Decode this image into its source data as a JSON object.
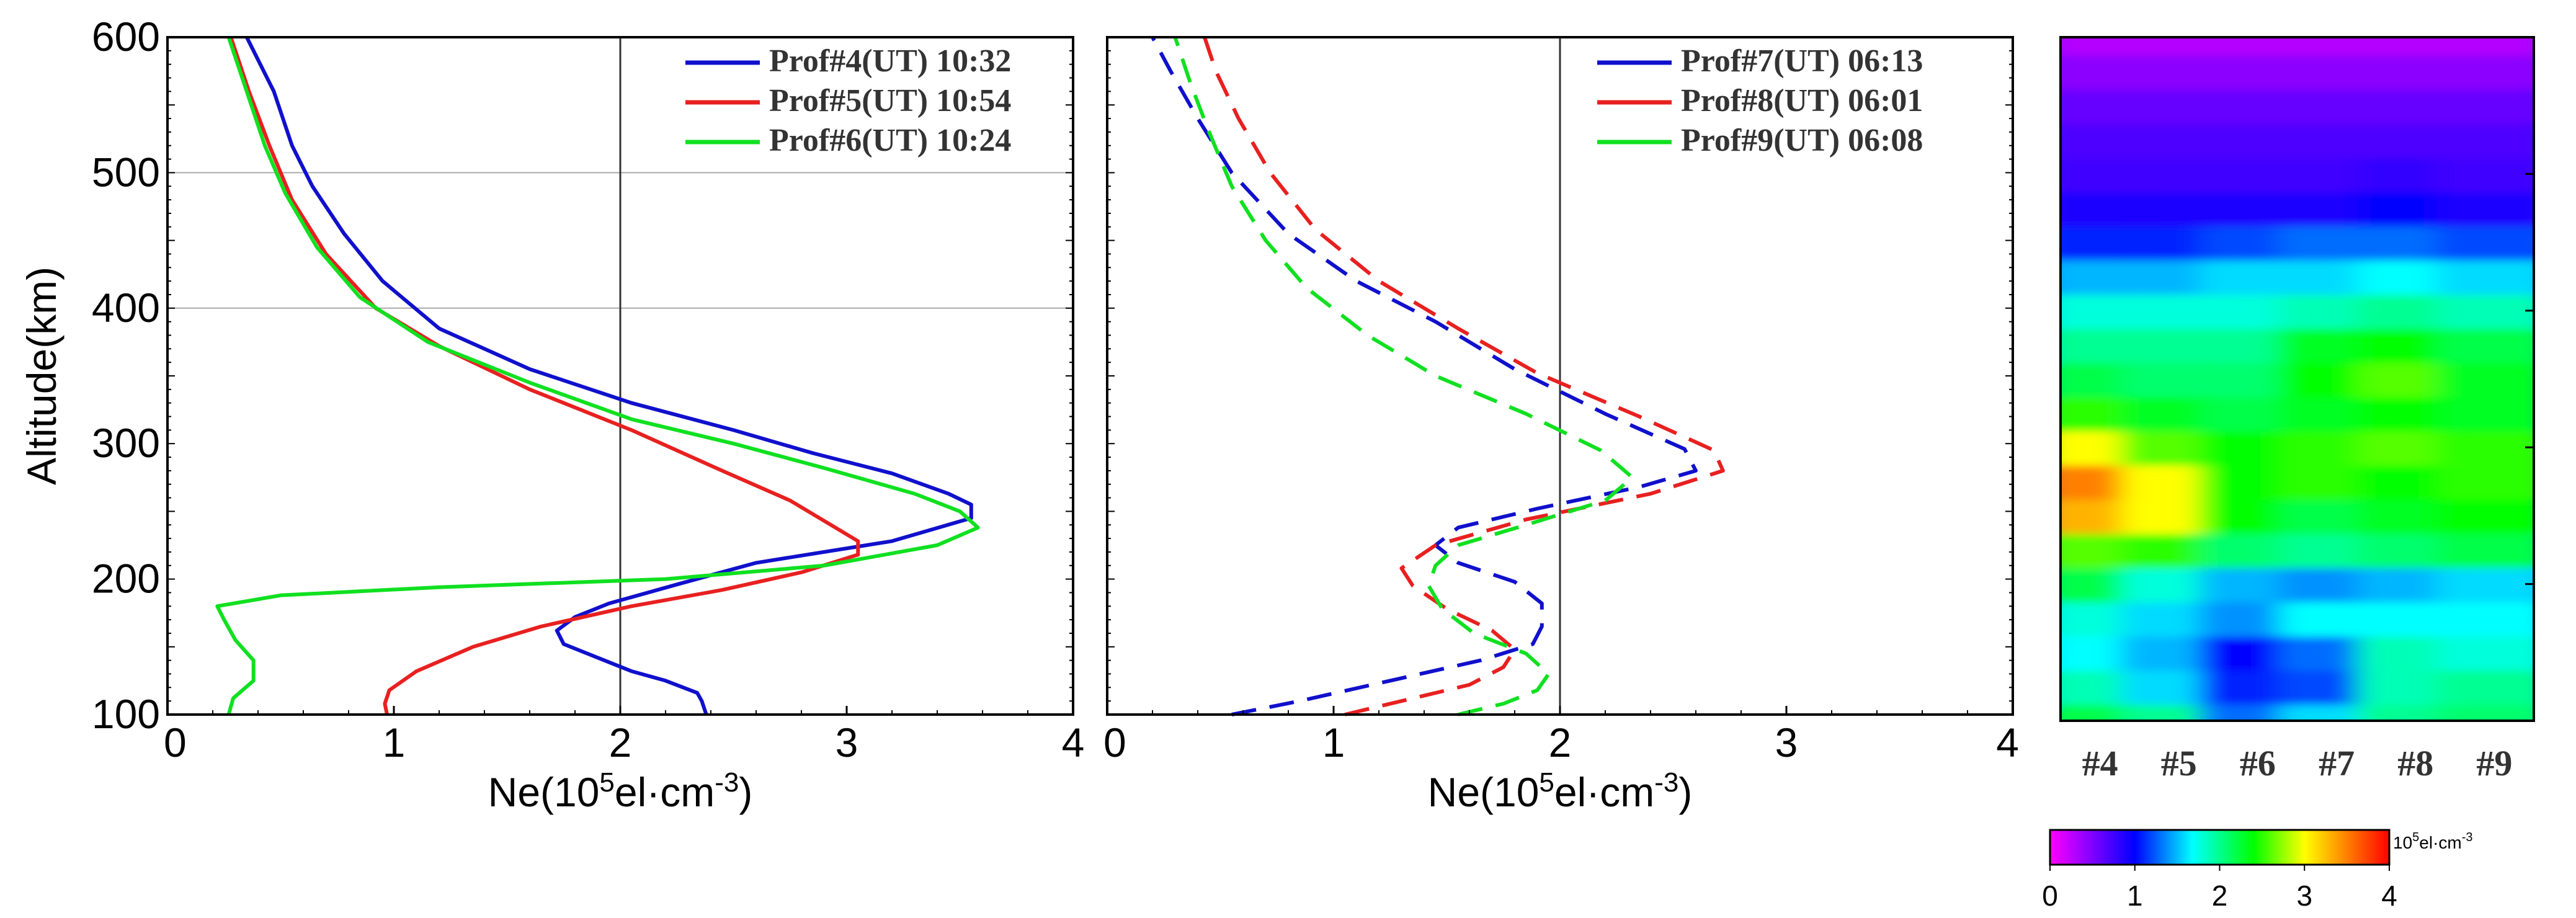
{
  "chart_data": [
    {
      "type": "line",
      "panel": "left",
      "xlabel": "Ne(10^5el·cm^-3)",
      "xlabel_parts": {
        "pre": "Ne(10",
        "sup1": "5",
        "mid": "el·cm",
        "sup2": "-3",
        "post": ")"
      },
      "ylabel": "Altitude(km)",
      "xlim": [
        0,
        4
      ],
      "ylim": [
        100,
        600
      ],
      "xticks": [
        "0",
        "1",
        "2",
        "3",
        "4"
      ],
      "yticks": [
        "100",
        "200",
        "300",
        "400",
        "500",
        "600"
      ],
      "gridlines": {
        "x": [
          2
        ],
        "y": [
          400,
          500
        ]
      },
      "legend_position": "top-right",
      "series": [
        {
          "name": "Prof#4(UT) 10:32",
          "color": "#1010cc",
          "style": "solid",
          "points": [
            [
              2.38,
              100
            ],
            [
              2.36,
              110
            ],
            [
              2.34,
              116
            ],
            [
              2.2,
              125
            ],
            [
              2.05,
              132
            ],
            [
              1.9,
              142
            ],
            [
              1.75,
              152
            ],
            [
              1.72,
              162
            ],
            [
              1.8,
              172
            ],
            [
              1.95,
              182
            ],
            [
              2.25,
              196
            ],
            [
              2.6,
              212
            ],
            [
              3.2,
              228
            ],
            [
              3.55,
              245
            ],
            [
              3.55,
              255
            ],
            [
              3.45,
              263
            ],
            [
              3.2,
              278
            ],
            [
              2.85,
              293
            ],
            [
              2.5,
              310
            ],
            [
              2.05,
              330
            ],
            [
              1.6,
              355
            ],
            [
              1.2,
              385
            ],
            [
              0.95,
              420
            ],
            [
              0.78,
              455
            ],
            [
              0.64,
              490
            ],
            [
              0.55,
              520
            ],
            [
              0.47,
              560
            ],
            [
              0.35,
              600
            ]
          ]
        },
        {
          "name": "Prof#5(UT) 10:54",
          "color": "#e82020",
          "style": "solid",
          "points": [
            [
              0.97,
              100
            ],
            [
              0.96,
              108
            ],
            [
              0.98,
              118
            ],
            [
              1.1,
              132
            ],
            [
              1.35,
              150
            ],
            [
              1.65,
              165
            ],
            [
              2.05,
              180
            ],
            [
              2.45,
              192
            ],
            [
              2.8,
              205
            ],
            [
              3.05,
              218
            ],
            [
              3.05,
              228
            ],
            [
              2.95,
              238
            ],
            [
              2.75,
              258
            ],
            [
              2.45,
              280
            ],
            [
              2.05,
              310
            ],
            [
              1.6,
              340
            ],
            [
              1.2,
              372
            ],
            [
              0.92,
              400
            ],
            [
              0.7,
              440
            ],
            [
              0.55,
              480
            ],
            [
              0.45,
              520
            ],
            [
              0.36,
              560
            ],
            [
              0.28,
              600
            ]
          ]
        },
        {
          "name": "Prof#6(UT) 10:24",
          "color": "#10e020",
          "style": "solid",
          "points": [
            [
              0.27,
              100
            ],
            [
              0.29,
              112
            ],
            [
              0.38,
              125
            ],
            [
              0.38,
              140
            ],
            [
              0.3,
              155
            ],
            [
              0.25,
              170
            ],
            [
              0.22,
              180
            ],
            [
              0.5,
              188
            ],
            [
              1.2,
              194
            ],
            [
              2.2,
              200
            ],
            [
              2.9,
              210
            ],
            [
              3.4,
              225
            ],
            [
              3.58,
              238
            ],
            [
              3.5,
              250
            ],
            [
              3.3,
              263
            ],
            [
              2.9,
              282
            ],
            [
              2.5,
              300
            ],
            [
              2.05,
              318
            ],
            [
              1.6,
              345
            ],
            [
              1.15,
              375
            ],
            [
              0.85,
              408
            ],
            [
              0.66,
              445
            ],
            [
              0.52,
              485
            ],
            [
              0.43,
              520
            ],
            [
              0.35,
              560
            ],
            [
              0.27,
              600
            ]
          ]
        }
      ]
    },
    {
      "type": "line",
      "panel": "middle",
      "xlabel": "Ne(10^5el·cm^-3)",
      "xlabel_parts": {
        "pre": "Ne(10",
        "sup1": "5",
        "mid": "el·cm",
        "sup2": "-3",
        "post": ")"
      },
      "xlim": [
        0,
        4
      ],
      "ylim": [
        100,
        600
      ],
      "xticks": [
        "0",
        "1",
        "2",
        "3",
        "4"
      ],
      "gridlines": {
        "x": [
          2
        ],
        "y": []
      },
      "legend_position": "top-right",
      "series": [
        {
          "name": "Prof#7(UT) 06:13",
          "color": "#1010cc",
          "style": "dashed",
          "points": [
            [
              0.55,
              100
            ],
            [
              0.85,
              110
            ],
            [
              1.25,
              125
            ],
            [
              1.65,
              140
            ],
            [
              1.88,
              152
            ],
            [
              1.92,
              165
            ],
            [
              1.92,
              182
            ],
            [
              1.8,
              198
            ],
            [
              1.55,
              212
            ],
            [
              1.45,
              225
            ],
            [
              1.55,
              238
            ],
            [
              1.9,
              252
            ],
            [
              2.35,
              268
            ],
            [
              2.6,
              280
            ],
            [
              2.55,
              296
            ],
            [
              2.2,
              322
            ],
            [
              1.8,
              355
            ],
            [
              1.45,
              390
            ],
            [
              1.1,
              420
            ],
            [
              0.8,
              455
            ],
            [
              0.55,
              500
            ],
            [
              0.4,
              540
            ],
            [
              0.28,
              575
            ],
            [
              0.2,
              600
            ]
          ]
        },
        {
          "name": "Prof#8(UT) 06:01",
          "color": "#e82020",
          "style": "dashed",
          "points": [
            [
              1.05,
              100
            ],
            [
              1.3,
              110
            ],
            [
              1.6,
              122
            ],
            [
              1.75,
              135
            ],
            [
              1.8,
              148
            ],
            [
              1.7,
              162
            ],
            [
              1.5,
              178
            ],
            [
              1.35,
              195
            ],
            [
              1.3,
              208
            ],
            [
              1.45,
              225
            ],
            [
              1.85,
              244
            ],
            [
              2.4,
              263
            ],
            [
              2.72,
              280
            ],
            [
              2.68,
              295
            ],
            [
              2.35,
              320
            ],
            [
              1.9,
              352
            ],
            [
              1.55,
              385
            ],
            [
              1.2,
              420
            ],
            [
              0.92,
              458
            ],
            [
              0.72,
              500
            ],
            [
              0.58,
              540
            ],
            [
              0.48,
              575
            ],
            [
              0.43,
              600
            ]
          ]
        },
        {
          "name": "Prof#9(UT) 06:08",
          "color": "#10e020",
          "style": "dashed",
          "points": [
            [
              1.55,
              100
            ],
            [
              1.75,
              108
            ],
            [
              1.9,
              118
            ],
            [
              1.95,
              130
            ],
            [
              1.85,
              145
            ],
            [
              1.62,
              160
            ],
            [
              1.48,
              178
            ],
            [
              1.42,
              195
            ],
            [
              1.45,
              210
            ],
            [
              1.55,
              225
            ],
            [
              1.85,
              240
            ],
            [
              2.2,
              258
            ],
            [
              2.32,
              275
            ],
            [
              2.18,
              295
            ],
            [
              1.85,
              322
            ],
            [
              1.45,
              350
            ],
            [
              1.15,
              380
            ],
            [
              0.88,
              415
            ],
            [
              0.7,
              450
            ],
            [
              0.55,
              490
            ],
            [
              0.45,
              530
            ],
            [
              0.37,
              565
            ],
            [
              0.3,
              600
            ]
          ]
        }
      ]
    },
    {
      "type": "heatmap",
      "panel": "right",
      "ylim": [
        100,
        600
      ],
      "xticks": [
        "#4",
        "#5",
        "#6",
        "#7",
        "#8",
        "#9"
      ],
      "colorbar": {
        "range": [
          0,
          4
        ],
        "ticks": [
          "0",
          "1",
          "2",
          "3",
          "4"
        ],
        "unit_parts": {
          "pre": "10",
          "sup": "5",
          "post": "el·cm",
          "sup2": "-3"
        }
      },
      "profiles": [
        "#4",
        "#5",
        "#6",
        "#7",
        "#8",
        "#9"
      ],
      "altitudes_km": [
        100,
        125,
        150,
        175,
        200,
        225,
        250,
        275,
        300,
        325,
        350,
        375,
        400,
        425,
        450,
        475,
        500,
        525,
        550,
        575,
        600
      ],
      "values": [
        [
          2.2,
          2.0,
          1.3,
          1.6,
          2.0,
          2.1
        ],
        [
          1.9,
          1.6,
          1.1,
          1.2,
          1.9,
          2.0
        ],
        [
          1.7,
          1.5,
          1.0,
          1.3,
          1.9,
          1.8
        ],
        [
          1.8,
          1.6,
          1.4,
          1.7,
          1.7,
          1.7
        ],
        [
          2.2,
          1.8,
          1.5,
          1.4,
          1.5,
          1.6
        ],
        [
          2.6,
          2.5,
          2.1,
          2.0,
          2.1,
          2.2
        ],
        [
          3.3,
          3.0,
          2.4,
          2.2,
          2.3,
          2.4
        ],
        [
          3.5,
          3.0,
          2.4,
          2.5,
          2.4,
          2.5
        ],
        [
          3.0,
          2.6,
          2.4,
          2.5,
          2.6,
          2.5
        ],
        [
          2.5,
          2.3,
          2.2,
          2.3,
          2.4,
          2.3
        ],
        [
          2.2,
          2.1,
          2.1,
          2.4,
          2.6,
          2.3
        ],
        [
          2.0,
          2.0,
          2.0,
          2.3,
          2.4,
          2.2
        ],
        [
          1.8,
          1.8,
          1.8,
          1.9,
          2.0,
          1.9
        ],
        [
          1.5,
          1.5,
          1.6,
          1.6,
          1.7,
          1.6
        ],
        [
          1.1,
          1.1,
          1.2,
          1.3,
          1.3,
          1.2
        ],
        [
          0.9,
          0.9,
          0.9,
          0.9,
          1.0,
          0.9
        ],
        [
          0.75,
          0.75,
          0.75,
          0.75,
          0.8,
          0.75
        ],
        [
          0.7,
          0.7,
          0.7,
          0.7,
          0.7,
          0.7
        ],
        [
          0.6,
          0.6,
          0.6,
          0.6,
          0.6,
          0.6
        ],
        [
          0.45,
          0.45,
          0.45,
          0.45,
          0.45,
          0.45
        ],
        [
          0.3,
          0.3,
          0.3,
          0.3,
          0.3,
          0.3
        ]
      ]
    }
  ]
}
